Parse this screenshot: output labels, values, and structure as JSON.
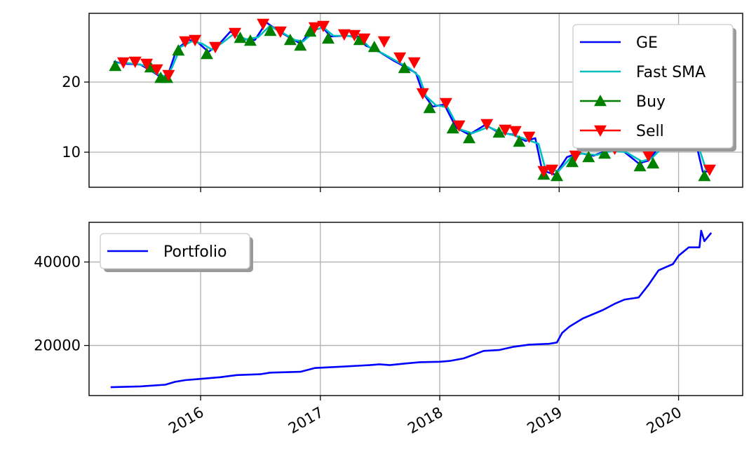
{
  "chart_data": [
    {
      "type": "line",
      "panel": "top",
      "xlim": [
        "2015-01-25",
        "2020-07-15"
      ],
      "ylim": [
        5,
        29.8
      ],
      "yticks": [
        10,
        20
      ],
      "grid": true,
      "legend": {
        "placement": "top-right",
        "entries": [
          {
            "label": "GE",
            "color": "#0000ff",
            "kind": "line"
          },
          {
            "label": "Fast SMA",
            "color": "#00bfbf",
            "kind": "line"
          },
          {
            "label": "Buy",
            "color": "#008000",
            "kind": "up-triangle"
          },
          {
            "label": "Sell",
            "color": "#ff0000",
            "kind": "down-triangle"
          }
        ]
      },
      "series": [
        {
          "name": "GE",
          "color": "#0000ff",
          "points": [
            [
              "2015-04-10",
              22.9
            ],
            [
              "2015-05-15",
              22.6
            ],
            [
              "2015-07-01",
              22.5
            ],
            [
              "2015-08-10",
              21.4
            ],
            [
              "2015-09-05",
              20.6
            ],
            [
              "2015-09-25",
              21.3
            ],
            [
              "2015-10-20",
              24.7
            ],
            [
              "2015-11-25",
              26.0
            ],
            [
              "2015-12-20",
              25.8
            ],
            [
              "2016-01-25",
              24.3
            ],
            [
              "2016-03-01",
              25.6
            ],
            [
              "2016-04-01",
              27.2
            ],
            [
              "2016-05-10",
              26.1
            ],
            [
              "2016-06-15",
              26.0
            ],
            [
              "2016-07-20",
              28.5
            ],
            [
              "2016-08-25",
              27.3
            ],
            [
              "2016-10-05",
              26.2
            ],
            [
              "2016-11-01",
              25.5
            ],
            [
              "2016-12-10",
              27.6
            ],
            [
              "2017-01-01",
              28.2
            ],
            [
              "2017-02-01",
              26.5
            ],
            [
              "2017-03-15",
              26.6
            ],
            [
              "2017-04-25",
              26.5
            ],
            [
              "2017-05-20",
              25.2
            ],
            [
              "2017-07-01",
              24.3
            ],
            [
              "2017-08-15",
              23.0
            ],
            [
              "2017-09-20",
              22.1
            ],
            [
              "2017-10-20",
              21.3
            ],
            [
              "2017-11-10",
              18.5
            ],
            [
              "2017-12-10",
              16.5
            ],
            [
              "2018-01-15",
              16.8
            ],
            [
              "2018-02-20",
              13.5
            ],
            [
              "2018-04-01",
              12.5
            ],
            [
              "2018-05-20",
              13.9
            ],
            [
              "2018-07-01",
              12.8
            ],
            [
              "2018-08-15",
              12.5
            ],
            [
              "2018-09-20",
              11.6
            ],
            [
              "2018-10-20",
              12.0
            ],
            [
              "2018-11-10",
              7.4
            ],
            [
              "2018-12-20",
              6.8
            ],
            [
              "2019-01-25",
              9.3
            ],
            [
              "2019-03-01",
              9.9
            ],
            [
              "2019-04-15",
              9.5
            ],
            [
              "2019-06-01",
              10.3
            ],
            [
              "2019-07-15",
              10.2
            ],
            [
              "2019-09-01",
              8.4
            ],
            [
              "2019-10-01",
              8.8
            ],
            [
              "2019-11-10",
              11.2
            ],
            [
              "2020-01-10",
              11.2
            ],
            [
              "2020-02-25",
              11.0
            ],
            [
              "2020-03-15",
              7.2
            ],
            [
              "2020-04-10",
              7.3
            ]
          ]
        },
        {
          "name": "Fast SMA",
          "color": "#00bfbf",
          "points": [
            [
              "2015-04-20",
              22.7
            ],
            [
              "2015-05-25",
              22.7
            ],
            [
              "2015-07-10",
              22.4
            ],
            [
              "2015-08-20",
              21.2
            ],
            [
              "2015-09-15",
              20.8
            ],
            [
              "2015-10-05",
              22.0
            ],
            [
              "2015-11-01",
              25.0
            ],
            [
              "2015-12-05",
              25.8
            ],
            [
              "2016-01-05",
              25.5
            ],
            [
              "2016-02-05",
              24.6
            ],
            [
              "2016-03-10",
              25.7
            ],
            [
              "2016-04-10",
              26.8
            ],
            [
              "2016-05-20",
              26.1
            ],
            [
              "2016-06-25",
              26.4
            ],
            [
              "2016-07-30",
              28.0
            ],
            [
              "2016-09-05",
              27.1
            ],
            [
              "2016-10-15",
              26.0
            ],
            [
              "2016-11-10",
              25.8
            ],
            [
              "2016-12-20",
              27.5
            ],
            [
              "2017-01-10",
              27.8
            ],
            [
              "2017-02-10",
              26.6
            ],
            [
              "2017-03-25",
              26.6
            ],
            [
              "2017-05-05",
              26.2
            ],
            [
              "2017-05-30",
              25.0
            ],
            [
              "2017-07-10",
              24.1
            ],
            [
              "2017-08-25",
              22.9
            ],
            [
              "2017-09-30",
              22.0
            ],
            [
              "2017-10-30",
              20.8
            ],
            [
              "2017-11-20",
              18.0
            ],
            [
              "2017-12-20",
              16.7
            ],
            [
              "2018-01-25",
              16.4
            ],
            [
              "2018-03-01",
              13.3
            ],
            [
              "2018-04-10",
              12.7
            ],
            [
              "2018-05-30",
              13.6
            ],
            [
              "2018-07-10",
              12.8
            ],
            [
              "2018-08-25",
              12.3
            ],
            [
              "2018-09-30",
              11.7
            ],
            [
              "2018-10-30",
              11.2
            ],
            [
              "2018-11-20",
              7.6
            ],
            [
              "2018-12-30",
              7.3
            ],
            [
              "2019-02-05",
              9.2
            ],
            [
              "2019-03-10",
              9.8
            ],
            [
              "2019-04-25",
              9.6
            ],
            [
              "2019-06-10",
              10.2
            ],
            [
              "2019-07-25",
              10.0
            ],
            [
              "2019-09-10",
              8.7
            ],
            [
              "2019-10-10",
              9.1
            ],
            [
              "2019-11-20",
              11.0
            ],
            [
              "2020-01-20",
              11.1
            ],
            [
              "2020-03-05",
              10.4
            ],
            [
              "2020-03-25",
              7.5
            ],
            [
              "2020-04-10",
              7.3
            ]
          ]
        },
        {
          "name": "Buy",
          "color": "#008000",
          "marker": "up-triangle",
          "points": [
            [
              "2015-04-15",
              22.3
            ],
            [
              "2015-08-01",
              22.1
            ],
            [
              "2015-09-01",
              20.6
            ],
            [
              "2015-09-20",
              20.6
            ],
            [
              "2015-10-25",
              24.5
            ],
            [
              "2016-01-20",
              24.0
            ],
            [
              "2016-05-01",
              26.3
            ],
            [
              "2016-06-01",
              25.9
            ],
            [
              "2016-08-01",
              27.3
            ],
            [
              "2016-10-01",
              26.0
            ],
            [
              "2016-11-01",
              25.2
            ],
            [
              "2016-12-01",
              27.2
            ],
            [
              "2017-01-25",
              26.2
            ],
            [
              "2017-05-01",
              26.0
            ],
            [
              "2017-06-15",
              25.0
            ],
            [
              "2017-09-15",
              22.0
            ],
            [
              "2017-12-01",
              16.3
            ],
            [
              "2018-02-10",
              13.4
            ],
            [
              "2018-04-01",
              12.0
            ],
            [
              "2018-07-01",
              12.8
            ],
            [
              "2018-09-01",
              11.5
            ],
            [
              "2018-11-15",
              6.8
            ],
            [
              "2018-12-25",
              6.6
            ],
            [
              "2019-02-10",
              8.6
            ],
            [
              "2019-04-01",
              9.3
            ],
            [
              "2019-05-20",
              9.8
            ],
            [
              "2019-09-05",
              8.0
            ],
            [
              "2019-10-15",
              8.4
            ],
            [
              "2020-03-20",
              6.6
            ]
          ]
        },
        {
          "name": "Sell",
          "color": "#ff0000",
          "marker": "down-triangle",
          "points": [
            [
              "2015-05-10",
              22.8
            ],
            [
              "2015-06-15",
              22.9
            ],
            [
              "2015-07-20",
              22.6
            ],
            [
              "2015-08-20",
              21.8
            ],
            [
              "2015-09-25",
              21.0
            ],
            [
              "2015-11-15",
              25.8
            ],
            [
              "2015-12-15",
              26.0
            ],
            [
              "2016-02-15",
              25.0
            ],
            [
              "2016-04-15",
              27.0
            ],
            [
              "2016-07-10",
              28.3
            ],
            [
              "2016-09-01",
              27.2
            ],
            [
              "2016-12-15",
              27.8
            ],
            [
              "2017-01-10",
              28.0
            ],
            [
              "2017-03-15",
              26.8
            ],
            [
              "2017-04-15",
              26.7
            ],
            [
              "2017-05-15",
              26.2
            ],
            [
              "2017-07-15",
              25.8
            ],
            [
              "2017-09-01",
              23.5
            ],
            [
              "2017-10-15",
              22.8
            ],
            [
              "2017-11-10",
              18.4
            ],
            [
              "2018-01-20",
              17.0
            ],
            [
              "2018-03-01",
              13.8
            ],
            [
              "2018-05-25",
              14.0
            ],
            [
              "2018-07-20",
              13.2
            ],
            [
              "2018-08-20",
              13.0
            ],
            [
              "2018-10-01",
              12.2
            ],
            [
              "2018-11-15",
              7.3
            ],
            [
              "2018-12-10",
              7.5
            ],
            [
              "2019-02-20",
              9.5
            ],
            [
              "2019-06-20",
              10.5
            ],
            [
              "2019-10-01",
              9.5
            ],
            [
              "2020-04-05",
              7.5
            ]
          ]
        }
      ]
    },
    {
      "type": "line",
      "panel": "bottom",
      "xlim": [
        "2015-01-25",
        "2020-07-15"
      ],
      "ylim": [
        8000,
        49500
      ],
      "yticks": [
        20000,
        40000
      ],
      "xticks": [
        "2016",
        "2017",
        "2018",
        "2019",
        "2020"
      ],
      "grid": true,
      "legend": {
        "placement": "top-left",
        "entries": [
          {
            "label": "Portfolio",
            "color": "#0000ff",
            "kind": "line"
          }
        ]
      },
      "series": [
        {
          "name": "Portfolio",
          "color": "#0000ff",
          "points": [
            [
              "2015-04-01",
              10000
            ],
            [
              "2015-07-01",
              10200
            ],
            [
              "2015-09-15",
              10600
            ],
            [
              "2015-10-15",
              11300
            ],
            [
              "2015-11-15",
              11700
            ],
            [
              "2016-01-01",
              12000
            ],
            [
              "2016-03-01",
              12400
            ],
            [
              "2016-04-20",
              12900
            ],
            [
              "2016-07-01",
              13100
            ],
            [
              "2016-08-01",
              13500
            ],
            [
              "2016-11-01",
              13700
            ],
            [
              "2016-12-15",
              14600
            ],
            [
              "2017-03-01",
              14900
            ],
            [
              "2017-06-01",
              15300
            ],
            [
              "2017-07-01",
              15500
            ],
            [
              "2017-08-01",
              15300
            ],
            [
              "2017-09-20",
              15700
            ],
            [
              "2017-11-01",
              16000
            ],
            [
              "2018-01-01",
              16100
            ],
            [
              "2018-02-01",
              16300
            ],
            [
              "2018-03-15",
              16900
            ],
            [
              "2018-04-15",
              17800
            ],
            [
              "2018-05-15",
              18700
            ],
            [
              "2018-07-01",
              18900
            ],
            [
              "2018-08-15",
              19700
            ],
            [
              "2018-10-01",
              20200
            ],
            [
              "2018-12-01",
              20400
            ],
            [
              "2018-12-25",
              20700
            ],
            [
              "2019-01-10",
              23000
            ],
            [
              "2019-02-01",
              24500
            ],
            [
              "2019-03-15",
              26500
            ],
            [
              "2019-05-15",
              28500
            ],
            [
              "2019-06-20",
              30000
            ],
            [
              "2019-07-20",
              31000
            ],
            [
              "2019-09-01",
              31500
            ],
            [
              "2019-10-01",
              34500
            ],
            [
              "2019-11-01",
              38000
            ],
            [
              "2019-12-15",
              39500
            ],
            [
              "2020-01-01",
              41500
            ],
            [
              "2020-02-01",
              43500
            ],
            [
              "2020-03-05",
              43500
            ],
            [
              "2020-03-10",
              47500
            ],
            [
              "2020-03-20",
              45000
            ],
            [
              "2020-04-10",
              47000
            ]
          ]
        }
      ]
    }
  ]
}
